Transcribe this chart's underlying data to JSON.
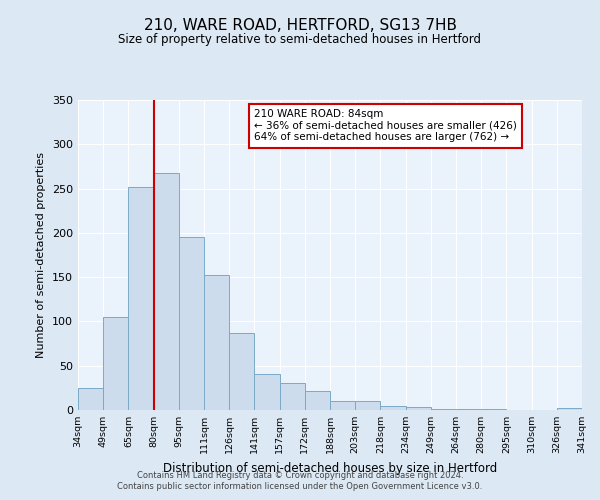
{
  "title": "210, WARE ROAD, HERTFORD, SG13 7HB",
  "subtitle": "Size of property relative to semi-detached houses in Hertford",
  "xlabel": "Distribution of semi-detached houses by size in Hertford",
  "ylabel": "Number of semi-detached properties",
  "bar_labels": [
    "34sqm",
    "49sqm",
    "65sqm",
    "80sqm",
    "95sqm",
    "111sqm",
    "126sqm",
    "141sqm",
    "157sqm",
    "172sqm",
    "188sqm",
    "203sqm",
    "218sqm",
    "234sqm",
    "249sqm",
    "264sqm",
    "280sqm",
    "295sqm",
    "310sqm",
    "326sqm",
    "341sqm"
  ],
  "bar_values": [
    25,
    105,
    252,
    268,
    195,
    152,
    87,
    41,
    30,
    21,
    10,
    10,
    5,
    3,
    1,
    1,
    1,
    0,
    0,
    2
  ],
  "bar_color": "#ccdcec",
  "bar_edgecolor": "#7aaac8",
  "vline_x": 3,
  "vline_color": "#cc0000",
  "ylim": [
    0,
    350
  ],
  "yticks": [
    0,
    50,
    100,
    150,
    200,
    250,
    300,
    350
  ],
  "annotation_text": "210 WARE ROAD: 84sqm\n← 36% of semi-detached houses are smaller (426)\n64% of semi-detached houses are larger (762) →",
  "annotation_box_facecolor": "#ffffff",
  "annotation_box_edgecolor": "#cc0000",
  "footer_line1": "Contains HM Land Registry data © Crown copyright and database right 2024.",
  "footer_line2": "Contains public sector information licensed under the Open Government Licence v3.0.",
  "bg_color": "#dce8f4",
  "plot_bg_color": "#eaf2fb"
}
